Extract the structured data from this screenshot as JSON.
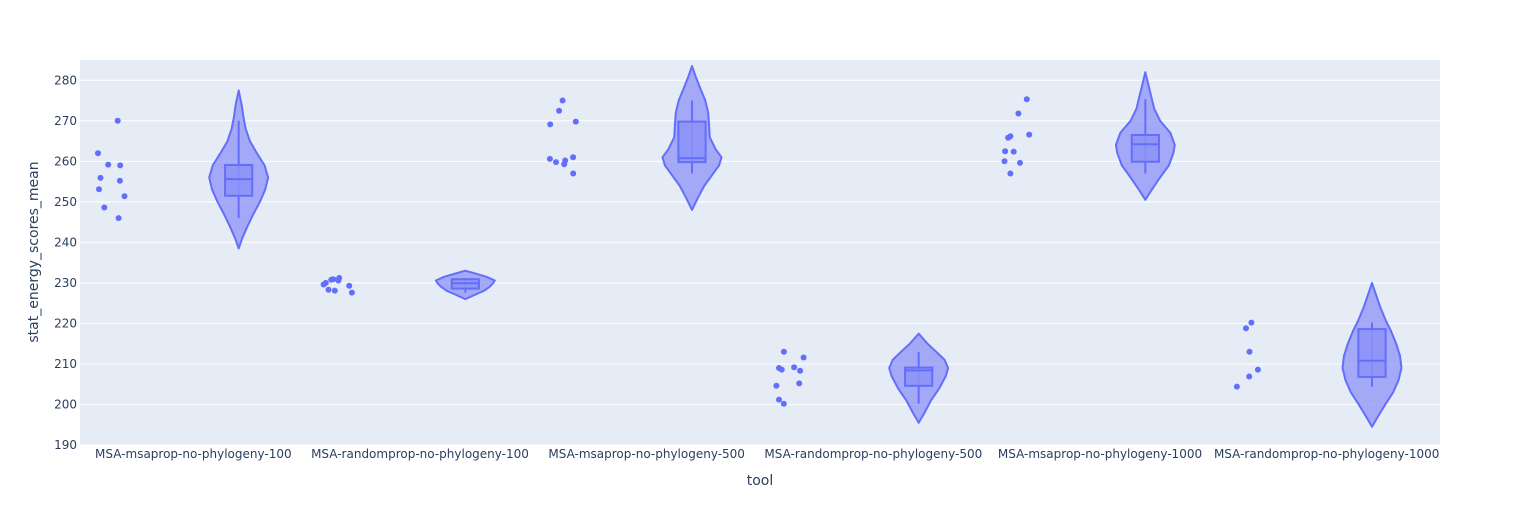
{
  "chart_data": {
    "type": "violin",
    "xlabel": "tool",
    "ylabel": "stat_energy_scores_mean",
    "ylim": [
      190,
      285
    ],
    "yticks": [
      190,
      200,
      210,
      220,
      230,
      240,
      250,
      260,
      270,
      280
    ],
    "grid": true,
    "legend": "none",
    "colors": {
      "plot_bg": "#e5ecf6",
      "grid": "#ffffff",
      "point": "#636efa",
      "violin_fill": "#8d93f7",
      "violin_line": "#636efa",
      "text": "#2a3f5f"
    },
    "categories": [
      {
        "name": "MSA-msaprop-no-phylogeny-100",
        "points": [
          270.0,
          262.0,
          259.2,
          259.0,
          255.9,
          255.2,
          253.1,
          251.4,
          248.6,
          246.0
        ],
        "box": {
          "q1": 251.5,
          "median": 255.6,
          "q3": 259.1,
          "whisker_low": 246.0,
          "whisker_high": 270.0
        },
        "violin": {
          "min": 238.5,
          "max": 277.5,
          "profile": [
            [
              238.5,
              0
            ],
            [
              241,
              0.12
            ],
            [
              244,
              0.3
            ],
            [
              247,
              0.5
            ],
            [
              250,
              0.72
            ],
            [
              253,
              0.9
            ],
            [
              256,
              1.0
            ],
            [
              259,
              0.88
            ],
            [
              262,
              0.62
            ],
            [
              265,
              0.38
            ],
            [
              268,
              0.24
            ],
            [
              271,
              0.16
            ],
            [
              274,
              0.1
            ],
            [
              277.5,
              0
            ]
          ]
        }
      },
      {
        "name": "MSA-randomprop-no-phylogeny-100",
        "points": [
          231.2,
          230.9,
          230.8,
          230.6,
          230.0,
          229.6,
          229.3,
          228.3,
          228.1,
          227.6
        ],
        "box": {
          "q1": 228.6,
          "median": 229.9,
          "q3": 230.9,
          "whisker_low": 227.6,
          "whisker_high": 231.2
        },
        "violin": {
          "min": 226.0,
          "max": 233.0,
          "profile": [
            [
              226,
              0
            ],
            [
              227,
              0.3
            ],
            [
              228,
              0.62
            ],
            [
              229,
              0.82
            ],
            [
              230,
              0.95
            ],
            [
              230.6,
              1.0
            ],
            [
              231.5,
              0.72
            ],
            [
              232.3,
              0.35
            ],
            [
              233,
              0
            ]
          ]
        }
      },
      {
        "name": "MSA-msaprop-no-phylogeny-500",
        "points": [
          275.0,
          272.5,
          269.8,
          269.1,
          261.0,
          260.6,
          260.2,
          259.8,
          259.3,
          257.0
        ],
        "box": {
          "q1": 259.8,
          "median": 260.8,
          "q3": 269.8,
          "whisker_low": 257.0,
          "whisker_high": 275.0
        },
        "violin": {
          "min": 248.0,
          "max": 283.5,
          "profile": [
            [
              248,
              0
            ],
            [
              251,
              0.2
            ],
            [
              254,
              0.42
            ],
            [
              257,
              0.72
            ],
            [
              259,
              0.92
            ],
            [
              261,
              1.0
            ],
            [
              263,
              0.8
            ],
            [
              266,
              0.6
            ],
            [
              269,
              0.58
            ],
            [
              272,
              0.55
            ],
            [
              275,
              0.45
            ],
            [
              278,
              0.28
            ],
            [
              281,
              0.12
            ],
            [
              283.5,
              0
            ]
          ]
        }
      },
      {
        "name": "MSA-randomprop-no-phylogeny-500",
        "points": [
          213.0,
          211.6,
          209.2,
          209.0,
          208.6,
          208.3,
          205.2,
          204.6,
          201.2,
          200.2
        ],
        "box": {
          "q1": 204.6,
          "median": 208.4,
          "q3": 209.1,
          "whisker_low": 200.2,
          "whisker_high": 213.0
        },
        "violin": {
          "min": 195.5,
          "max": 217.5,
          "profile": [
            [
              195.5,
              0
            ],
            [
              198,
              0.2
            ],
            [
              201,
              0.42
            ],
            [
              204,
              0.7
            ],
            [
              207,
              0.92
            ],
            [
              209,
              1.0
            ],
            [
              211,
              0.88
            ],
            [
              213,
              0.6
            ],
            [
              215,
              0.3
            ],
            [
              217.5,
              0
            ]
          ]
        }
      },
      {
        "name": "MSA-msaprop-no-phylogeny-1000",
        "points": [
          275.3,
          271.8,
          266.6,
          266.2,
          265.8,
          262.5,
          262.4,
          260.0,
          259.6,
          257.0
        ],
        "box": {
          "q1": 259.9,
          "median": 264.2,
          "q3": 266.5,
          "whisker_low": 257.0,
          "whisker_high": 275.3
        },
        "violin": {
          "min": 250.5,
          "max": 282.0,
          "profile": [
            [
              250.5,
              0
            ],
            [
              253,
              0.22
            ],
            [
              256,
              0.5
            ],
            [
              259,
              0.8
            ],
            [
              262,
              0.95
            ],
            [
              264,
              1.0
            ],
            [
              267,
              0.85
            ],
            [
              270,
              0.5
            ],
            [
              273,
              0.3
            ],
            [
              276,
              0.2
            ],
            [
              279,
              0.1
            ],
            [
              282,
              0
            ]
          ]
        }
      },
      {
        "name": "MSA-randomprop-no-phylogeny-1000",
        "points": [
          220.2,
          218.8,
          213.0,
          208.6,
          206.9,
          204.4
        ],
        "box": {
          "q1": 206.8,
          "median": 210.8,
          "q3": 218.6,
          "whisker_low": 204.4,
          "whisker_high": 220.2
        },
        "violin": {
          "min": 194.5,
          "max": 230.0,
          "profile": [
            [
              194.5,
              0
            ],
            [
              197,
              0.2
            ],
            [
              200,
              0.45
            ],
            [
              203,
              0.72
            ],
            [
              206,
              0.9
            ],
            [
              209,
              1.0
            ],
            [
              212,
              0.95
            ],
            [
              215,
              0.82
            ],
            [
              218,
              0.65
            ],
            [
              221,
              0.45
            ],
            [
              224,
              0.28
            ],
            [
              227,
              0.14
            ],
            [
              230,
              0
            ]
          ]
        }
      }
    ]
  }
}
